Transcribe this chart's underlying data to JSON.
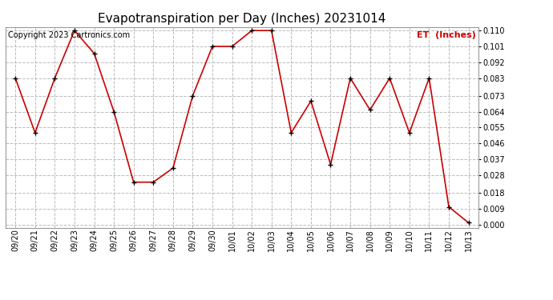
{
  "title": "Evapotranspiration per Day (Inches) 20231014",
  "copyright_text": "Copyright 2023 Cartronics.com",
  "legend_label": "ET  (Inches)",
  "dates": [
    "09/20",
    "09/21",
    "09/22",
    "09/23",
    "09/24",
    "09/25",
    "09/26",
    "09/27",
    "09/28",
    "09/29",
    "09/30",
    "10/01",
    "10/02",
    "10/03",
    "10/04",
    "10/05",
    "10/06",
    "10/07",
    "10/08",
    "10/09",
    "10/10",
    "10/11",
    "10/12",
    "10/13"
  ],
  "values": [
    0.083,
    0.052,
    0.083,
    0.11,
    0.097,
    0.064,
    0.024,
    0.024,
    0.032,
    0.073,
    0.101,
    0.101,
    0.11,
    0.11,
    0.052,
    0.07,
    0.034,
    0.083,
    0.065,
    0.083,
    0.052,
    0.083,
    0.01,
    0.001
  ],
  "ylim": [
    -0.002,
    0.112
  ],
  "yticks": [
    0.0,
    0.009,
    0.018,
    0.028,
    0.037,
    0.046,
    0.055,
    0.064,
    0.073,
    0.083,
    0.092,
    0.101,
    0.11
  ],
  "line_color": "#cc0000",
  "marker_color": "#000000",
  "grid_color": "#bbbbbb",
  "background_color": "#ffffff",
  "title_fontsize": 11,
  "copyright_fontsize": 7,
  "legend_color": "#cc0000",
  "tick_fontsize": 7,
  "legend_fontsize": 8,
  "figwidth": 6.9,
  "figheight": 3.75,
  "dpi": 100
}
